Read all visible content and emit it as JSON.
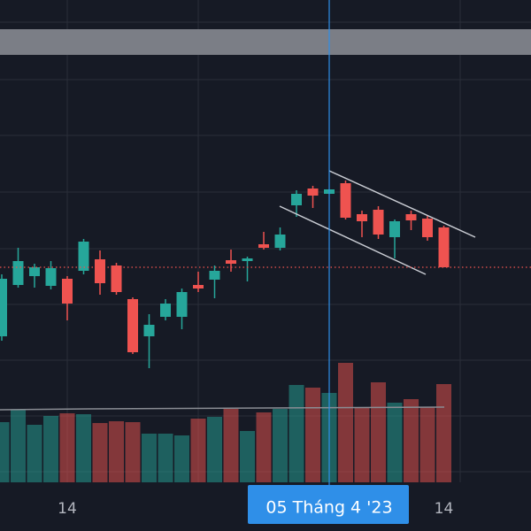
{
  "chart_data": {
    "type": "candlestick",
    "categories": [
      null,
      null,
      null,
      null,
      "14",
      null,
      null,
      null,
      null,
      null,
      null,
      null,
      null,
      null,
      null,
      null,
      null,
      null,
      null,
      null,
      "05 Tháng 4 '23",
      null,
      null,
      null,
      null,
      null,
      null,
      "14"
    ],
    "open": [
      220,
      278,
      288,
      277,
      285,
      294,
      307,
      300,
      262,
      220,
      242,
      242,
      278,
      284,
      306,
      305,
      324,
      320,
      368,
      387,
      381,
      393,
      358,
      363,
      332,
      358,
      353,
      343
    ],
    "high": [
      290,
      320,
      302,
      305,
      288,
      330,
      317,
      303,
      264,
      245,
      262,
      274,
      293,
      300,
      318,
      310,
      338,
      343,
      385,
      390,
      386,
      396,
      362,
      367,
      352,
      362,
      357,
      345
    ],
    "low": [
      215,
      275,
      275,
      273,
      238,
      290,
      267,
      267,
      200,
      184,
      238,
      228,
      270,
      263,
      293,
      282,
      318,
      317,
      355,
      365,
      381,
      352,
      332,
      330,
      308,
      340,
      328,
      298
    ],
    "close": [
      285,
      305,
      298,
      297,
      257,
      327,
      280,
      270,
      202,
      233,
      257,
      270,
      274,
      294,
      302,
      308,
      320,
      335,
      381,
      379,
      386,
      354,
      350,
      335,
      350,
      351,
      332,
      298
    ],
    "volume": [
      68,
      82,
      65,
      75,
      78,
      77,
      67,
      69,
      68,
      55,
      55,
      53,
      72,
      74,
      83,
      58,
      79,
      83,
      110,
      107,
      101,
      135,
      85,
      113,
      90,
      94,
      85,
      111
    ],
    "up_color": "#26a69a",
    "down_color": "#ef5350",
    "ylim": [
      0,
      600
    ],
    "volume_ylim": [
      0,
      545
    ],
    "crosshair_index": 20
  }
}
